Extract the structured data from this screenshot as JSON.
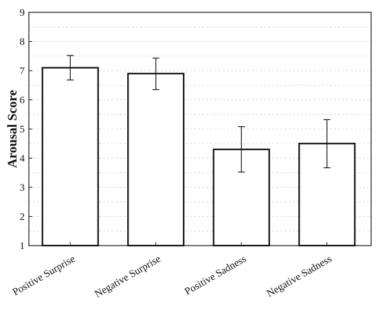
{
  "chart_data": {
    "type": "bar",
    "title": "",
    "xlabel": "",
    "ylabel": "Arousal Score",
    "ylim": [
      1,
      9
    ],
    "yticks": [
      1,
      2,
      3,
      4,
      5,
      6,
      7,
      8,
      9
    ],
    "grid": true,
    "categories": [
      "Positive Surprise",
      "Negative Surprise",
      "Positive Sadness",
      "Negative Sadness"
    ],
    "values": [
      7.1,
      6.9,
      4.3,
      4.5
    ],
    "error_low": [
      6.68,
      6.35,
      3.52,
      3.67
    ],
    "error_high": [
      7.52,
      7.43,
      5.08,
      5.32
    ],
    "colors": {
      "bar_fill": "#ffffff",
      "bar_stroke": "#111111",
      "grid": "#d9d9d9",
      "axis": "#111111"
    }
  }
}
